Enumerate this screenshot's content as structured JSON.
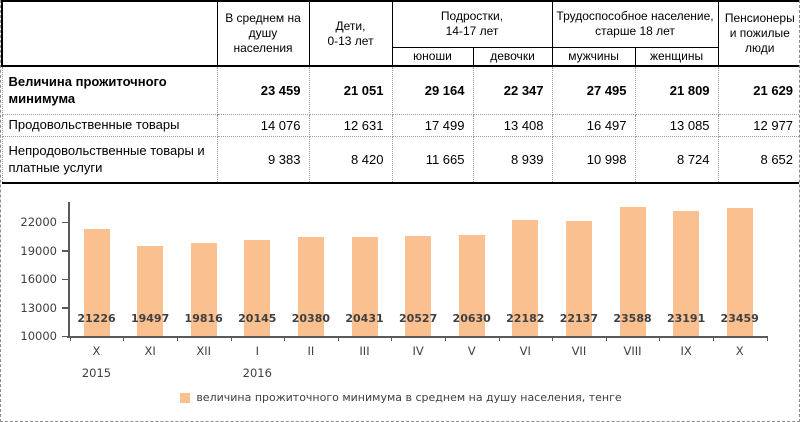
{
  "table": {
    "headers": {
      "avg": "В среднем на душу населения",
      "children": "Дети,\n0-13 лет",
      "teens": "Подростки,\n14-17 лет",
      "teens_m": "юноши",
      "teens_f": "девочки",
      "working": "Трудоспособное население, старше 18 лет",
      "working_m": "мужчины",
      "working_f": "женщины",
      "pensioners": "Пенсионеры и пожилые люди"
    },
    "rows": [
      {
        "label": "Величина прожиточного минимума",
        "values": [
          "23 459",
          "21 051",
          "29 164",
          "22 347",
          "27 495",
          "21 809",
          "21 629"
        ]
      },
      {
        "label": "Продовольственные товары",
        "values": [
          "14 076",
          "12 631",
          "17 499",
          "13 408",
          "16 497",
          "13 085",
          "12 977"
        ]
      },
      {
        "label": "Непродовольственные товары и платные услуги",
        "values": [
          "9 383",
          "8 420",
          "11 665",
          "8 939",
          "10 998",
          "8 724",
          "8 652"
        ]
      }
    ]
  },
  "chart_data": {
    "type": "bar",
    "categories": [
      "X",
      "XI",
      "XII",
      "I",
      "II",
      "III",
      "IV",
      "V",
      "VI",
      "VII",
      "VIII",
      "IX",
      "X"
    ],
    "values": [
      21226,
      19497,
      19816,
      20145,
      20380,
      20431,
      20527,
      20630,
      22182,
      22137,
      23588,
      23191,
      23459
    ],
    "year_labels": [
      {
        "text": "2015",
        "category_index": 0
      },
      {
        "text": "2016",
        "category_index": 3
      }
    ],
    "y_ticks": [
      10000,
      13000,
      16000,
      19000,
      22000
    ],
    "ylim": [
      10000,
      24400
    ],
    "grid": false,
    "data_labels": "at-bar-base",
    "legend": "величина прожиточного минимума в среднем на душу населения, тенге",
    "legend_position": "bottom",
    "bar_color": "#FAC090",
    "axis_color": "#595959",
    "text_color": "#404040",
    "title": "",
    "xlabel": "",
    "ylabel": ""
  }
}
